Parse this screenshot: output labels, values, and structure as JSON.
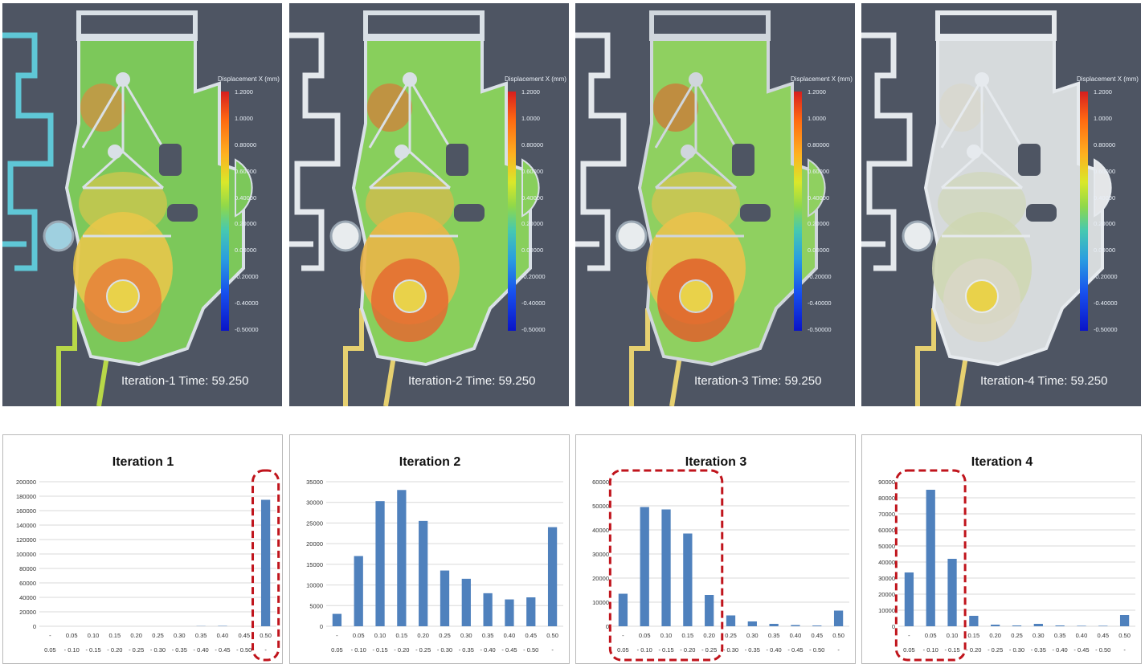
{
  "simulations": [
    {
      "label": "Iteration-1 Time: 59.250"
    },
    {
      "label": "Iteration-2 Time: 59.250"
    },
    {
      "label": "Iteration-3 Time: 59.250"
    },
    {
      "label": "Iteration-4 Time: 59.250"
    }
  ],
  "colorbar": {
    "title": "Displacement X (mm)",
    "ticks": [
      "1.2000",
      "1.0000",
      "0.80000",
      "0.60000",
      "0.40000",
      "0.20000",
      "0.00000",
      "-0.20000",
      "-0.40000",
      "-0.50000"
    ]
  },
  "colors": {
    "bar": "#4f81bd",
    "highlight": "#c0141c",
    "grid": "#d9d9d9",
    "sim_bg": "#4e5563"
  },
  "chart_data": [
    {
      "type": "bar",
      "title": "Iteration 1",
      "categories": [
        "- 0.05",
        "0.05 - 0.10",
        "0.10 - 0.15",
        "0.15 - 0.20",
        "0.20 - 0.25",
        "0.25 - 0.30",
        "0.30 - 0.35",
        "0.35 - 0.40",
        "0.40 - 0.45",
        "0.45 - 0.50",
        "0.50 -"
      ],
      "cat_top": [
        "-",
        "0.05",
        "0.10",
        "0.15",
        "0.20",
        "0.25",
        "0.30",
        "0.35",
        "0.40",
        "0.45",
        "0.50"
      ],
      "cat_bottom": [
        "0.05",
        "- 0.10",
        "- 0.15",
        "- 0.20",
        "- 0.25",
        "- 0.30",
        "- 0.35",
        "- 0.40",
        "- 0.45",
        "- 0.50",
        "-"
      ],
      "values": [
        0,
        0,
        0,
        0,
        0,
        0,
        0,
        300,
        500,
        0,
        175000
      ],
      "yticks": [
        "200000",
        "180000",
        "160000",
        "140000",
        "120000",
        "100000",
        "80000",
        "60000",
        "40000",
        "20000",
        "0"
      ],
      "ylim": [
        0,
        200000
      ],
      "highlight": [
        10,
        10
      ]
    },
    {
      "type": "bar",
      "title": "Iteration 2",
      "categories": [
        "- 0.05",
        "0.05 - 0.10",
        "0.10 - 0.15",
        "0.15 - 0.20",
        "0.20 - 0.25",
        "0.25 - 0.30",
        "0.30 - 0.35",
        "0.35 - 0.40",
        "0.40 - 0.45",
        "0.45 - 0.50",
        "0.50 -"
      ],
      "cat_top": [
        "-",
        "0.05",
        "0.10",
        "0.15",
        "0.20",
        "0.25",
        "0.30",
        "0.35",
        "0.40",
        "0.45",
        "0.50"
      ],
      "cat_bottom": [
        "0.05",
        "- 0.10",
        "- 0.15",
        "- 0.20",
        "- 0.25",
        "- 0.30",
        "- 0.35",
        "- 0.40",
        "- 0.45",
        "- 0.50",
        "-"
      ],
      "values": [
        3000,
        17000,
        30300,
        33000,
        25500,
        13500,
        11500,
        8000,
        6500,
        7000,
        24000
      ],
      "yticks": [
        "35000",
        "30000",
        "25000",
        "20000",
        "15000",
        "10000",
        "5000",
        "0"
      ],
      "ylim": [
        0,
        35000
      ],
      "highlight": null
    },
    {
      "type": "bar",
      "title": "Iteration 3",
      "categories": [
        "- 0.05",
        "0.05 - 0.10",
        "0.10 - 0.15",
        "0.15 - 0.20",
        "0.20 - 0.25",
        "0.25 - 0.30",
        "0.30 - 0.35",
        "0.35 - 0.40",
        "0.40 - 0.45",
        "0.45 - 0.50",
        "0.50 -"
      ],
      "cat_top": [
        "-",
        "0.05",
        "0.10",
        "0.15",
        "0.20",
        "0.25",
        "0.30",
        "0.35",
        "0.40",
        "0.45",
        "0.50"
      ],
      "cat_bottom": [
        "0.05",
        "- 0.10",
        "- 0.15",
        "- 0.20",
        "- 0.25",
        "- 0.30",
        "- 0.35",
        "- 0.40",
        "- 0.45",
        "- 0.50",
        "-"
      ],
      "values": [
        13500,
        49500,
        48500,
        38500,
        13000,
        4500,
        2000,
        1000,
        500,
        300,
        6500
      ],
      "yticks": [
        "60000",
        "50000",
        "40000",
        "30000",
        "20000",
        "10000",
        "0"
      ],
      "ylim": [
        0,
        60000
      ],
      "highlight": [
        0,
        4
      ]
    },
    {
      "type": "bar",
      "title": "Iteration 4",
      "categories": [
        "- 0.05",
        "0.05 - 0.10",
        "0.10 - 0.15",
        "0.15 - 0.20",
        "0.20 - 0.25",
        "0.25 - 0.30",
        "0.30 - 0.35",
        "0.35 - 0.40",
        "0.40 - 0.45",
        "0.45 - 0.50",
        "0.50 -"
      ],
      "cat_top": [
        "-",
        "0.05",
        "0.10",
        "0.15",
        "0.20",
        "0.25",
        "0.30",
        "0.35",
        "0.40",
        "0.45",
        "0.50"
      ],
      "cat_bottom": [
        "0.05",
        "- 0.10",
        "- 0.15",
        "- 0.20",
        "- 0.25",
        "- 0.30",
        "- 0.35",
        "- 0.40",
        "- 0.45",
        "- 0.50",
        "-"
      ],
      "values": [
        33500,
        85000,
        42000,
        6500,
        1000,
        500,
        1500,
        500,
        300,
        300,
        7000
      ],
      "yticks": [
        "90000",
        "80000",
        "70000",
        "60000",
        "50000",
        "40000",
        "30000",
        "20000",
        "10000",
        "0"
      ],
      "ylim": [
        0,
        90000
      ],
      "highlight": [
        0,
        2
      ]
    }
  ]
}
